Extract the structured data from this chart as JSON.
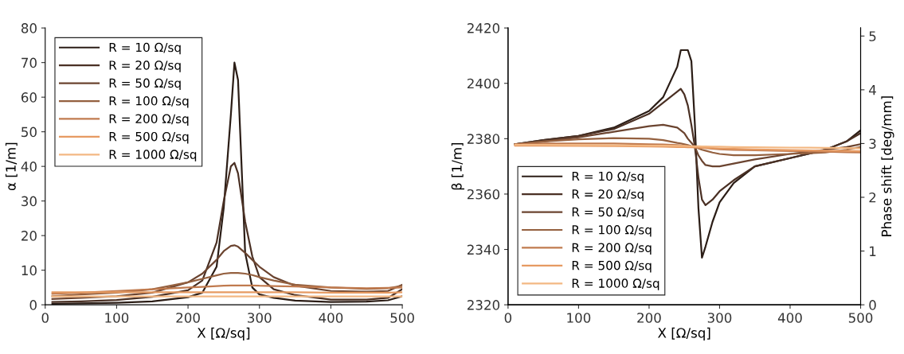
{
  "chart_data": [
    {
      "type": "line",
      "xlabel": "X [Ω/sq]",
      "ylabel": "α [1/m]",
      "xlim": [
        0,
        500
      ],
      "xticks": [
        0,
        100,
        200,
        300,
        400,
        500
      ],
      "ylim": [
        0,
        80
      ],
      "yticks": [
        0,
        10,
        20,
        30,
        40,
        50,
        60,
        70,
        80
      ],
      "legend": "top left",
      "grid": false,
      "x": [
        10,
        50,
        100,
        150,
        200,
        220,
        240,
        250,
        260,
        265,
        270,
        280,
        290,
        300,
        320,
        350,
        400,
        450,
        480,
        500
      ],
      "series": [
        {
          "name": "R = 10 Ω/sq",
          "color": "#2b1d16",
          "values": [
            0.3,
            0.4,
            0.6,
            1.0,
            2.2,
            3.5,
            11,
            28,
            55,
            70,
            65,
            15,
            5,
            3,
            2,
            1.2,
            0.8,
            0.9,
            1.3,
            2.5
          ]
        },
        {
          "name": "R = 20 Ω/sq",
          "color": "#4a3024",
          "values": [
            0.8,
            1.0,
            1.4,
            2.3,
            4.2,
            7,
            18,
            30,
            40,
            41,
            38,
            24,
            14,
            8,
            4.5,
            2.8,
            1.5,
            1.5,
            2,
            4.5
          ]
        },
        {
          "name": "R = 50 Ω/sq",
          "color": "#6b4430",
          "values": [
            1.7,
            2.0,
            2.5,
            3.5,
            6.5,
            9,
            13,
            15.5,
            17,
            17.2,
            16.8,
            15,
            13,
            11,
            8,
            5.5,
            4,
            3.8,
            4,
            5.8
          ]
        },
        {
          "name": "R = 100 Ω/sq",
          "color": "#94603f",
          "values": [
            2.5,
            3,
            3.5,
            4.5,
            6.5,
            7.5,
            8.5,
            9,
            9.2,
            9.2,
            9.2,
            9,
            8.6,
            8,
            7,
            5.8,
            5,
            4.6,
            4.8,
            5.5
          ]
        },
        {
          "name": "R = 200 Ω/sq",
          "color": "#c07a4e",
          "values": [
            3.2,
            3.5,
            4,
            4.5,
            5,
            5.2,
            5.4,
            5.5,
            5.6,
            5.6,
            5.6,
            5.6,
            5.6,
            5.5,
            5.4,
            5.3,
            5,
            4.8,
            4.9,
            5
          ]
        },
        {
          "name": "R = 500 Ω/sq",
          "color": "#e69a62",
          "values": [
            3.6,
            3.6,
            3.6,
            3.6,
            3.6,
            3.6,
            3.6,
            3.6,
            3.6,
            3.6,
            3.6,
            3.6,
            3.6,
            3.6,
            3.6,
            3.6,
            3.5,
            3.5,
            3.5,
            3.6
          ]
        },
        {
          "name": "R = 1000 Ω/sq",
          "color": "#f3b883",
          "values": [
            2.4,
            2.4,
            2.4,
            2.4,
            2.4,
            2.4,
            2.4,
            2.4,
            2.4,
            2.4,
            2.4,
            2.4,
            2.4,
            2.4,
            2.4,
            2.4,
            2.4,
            2.4,
            2.4,
            2.4
          ]
        }
      ]
    },
    {
      "type": "line",
      "xlabel": "X [Ω/sq]",
      "ylabel": "β [1/m]",
      "y2label": "Phase shift [deg/mm]",
      "xlim": [
        0,
        500
      ],
      "xticks": [
        0,
        100,
        200,
        300,
        400,
        500
      ],
      "ylim": [
        2320,
        2420
      ],
      "yticks": [
        2320,
        2340,
        2360,
        2380,
        2400,
        2420
      ],
      "y2lim": [
        0,
        5.15
      ],
      "y2ticks": [
        0,
        1,
        2,
        3,
        4,
        5
      ],
      "legend": "bottom left",
      "grid": false,
      "x": [
        10,
        50,
        100,
        150,
        200,
        220,
        240,
        245,
        250,
        255,
        260,
        265,
        270,
        275,
        280,
        290,
        300,
        320,
        350,
        400,
        450,
        480,
        500
      ],
      "series": [
        {
          "name": "R = 10 Ω/sq",
          "color": "#2b1d16",
          "values": [
            2378,
            2379.5,
            2381,
            2384,
            2390,
            2395,
            2406,
            2412,
            2412,
            2412,
            2408,
            2385,
            2355,
            2337,
            2341,
            2350,
            2357,
            2364,
            2370,
            2373,
            2376,
            2379,
            2383
          ]
        },
        {
          "name": "R = 20 Ω/sq",
          "color": "#4a3024",
          "values": [
            2378,
            2379.5,
            2381,
            2383.5,
            2389,
            2393,
            2397,
            2398,
            2396,
            2392,
            2385,
            2377,
            2366,
            2358,
            2356,
            2358,
            2361,
            2365,
            2370,
            2373,
            2376,
            2379,
            2382
          ]
        },
        {
          "name": "R = 50 Ω/sq",
          "color": "#6b4430",
          "values": [
            2378,
            2379,
            2380.5,
            2382.5,
            2384.5,
            2385,
            2384,
            2383,
            2382,
            2380,
            2378.5,
            2377,
            2374,
            2372,
            2370.5,
            2370,
            2370,
            2371,
            2372.5,
            2374.5,
            2376,
            2377,
            2378
          ]
        },
        {
          "name": "R = 100 Ω/sq",
          "color": "#94603f",
          "values": [
            2378,
            2379,
            2379.8,
            2380.2,
            2380,
            2379.5,
            2378.5,
            2378.3,
            2378,
            2377.7,
            2377.3,
            2377,
            2376.5,
            2376,
            2375.7,
            2375,
            2374.5,
            2374,
            2374,
            2374.5,
            2375,
            2376,
            2377
          ]
        },
        {
          "name": "R = 200 Ω/sq",
          "color": "#c07a4e",
          "values": [
            2378,
            2378.3,
            2378.3,
            2378.3,
            2378,
            2377.9,
            2377.7,
            2377.6,
            2377.5,
            2377.4,
            2377.2,
            2377,
            2376.8,
            2376.7,
            2376.6,
            2376.4,
            2376.2,
            2376,
            2375.8,
            2375.5,
            2375.3,
            2375.1,
            2375
          ]
        },
        {
          "name": "R = 500 Ω/sq",
          "color": "#e69a62",
          "values": [
            2377.5,
            2377.5,
            2377.4,
            2377.3,
            2377.2,
            2377.1,
            2377,
            2377,
            2377,
            2376.9,
            2376.9,
            2376.8,
            2376.8,
            2376.7,
            2376.7,
            2376.6,
            2376.5,
            2376.3,
            2376.1,
            2375.9,
            2375.7,
            2375.6,
            2375.5
          ]
        },
        {
          "name": "R = 1000 Ω/sq",
          "color": "#f3b883",
          "values": [
            2377.8,
            2377.8,
            2377.7,
            2377.6,
            2377.5,
            2377.5,
            2377.4,
            2377.4,
            2377.4,
            2377.3,
            2377.3,
            2377.3,
            2377.3,
            2377.2,
            2377.2,
            2377.1,
            2377.1,
            2377,
            2376.9,
            2376.8,
            2376.7,
            2376.6,
            2376.5
          ]
        }
      ]
    }
  ]
}
